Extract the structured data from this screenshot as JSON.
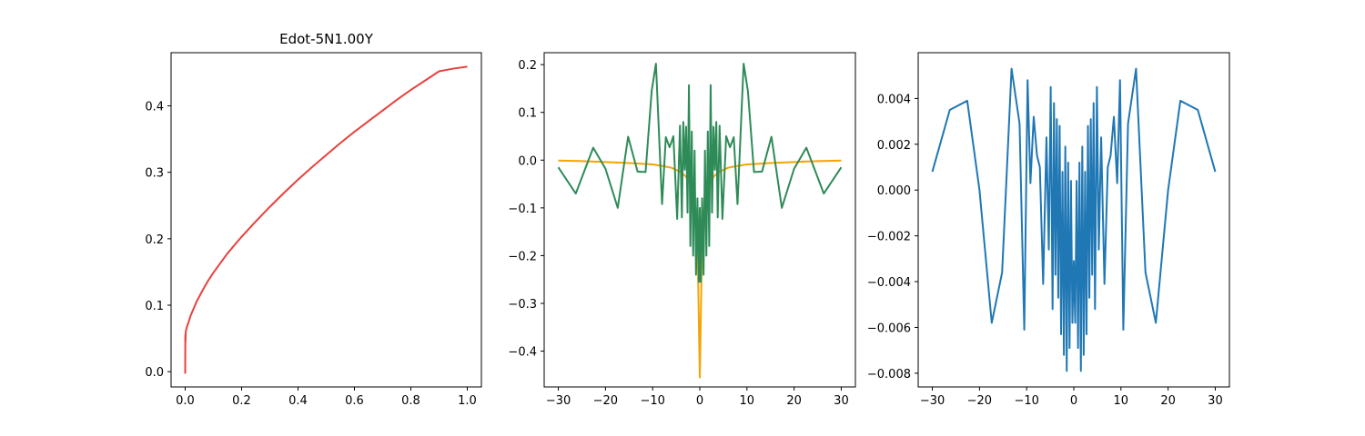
{
  "chart_data": [
    {
      "type": "line",
      "title": "Edot-5N1.00Y",
      "xlim": [
        -0.05,
        1.05
      ],
      "ylim": [
        -0.023,
        0.48
      ],
      "xticks": [
        0.0,
        0.2,
        0.4,
        0.6,
        0.8,
        1.0
      ],
      "xtick_labels": [
        "0.0",
        "0.2",
        "0.4",
        "0.6",
        "0.8",
        "1.0"
      ],
      "yticks": [
        0.0,
        0.1,
        0.2,
        0.3,
        0.4
      ],
      "ytick_labels": [
        "0.0",
        "0.1",
        "0.2",
        "0.3",
        "0.4"
      ],
      "grid": false,
      "series": [
        {
          "color": "#e8413c",
          "x": [
            0.0,
            0.0005,
            0.001,
            0.002,
            0.005,
            0.01,
            0.02,
            0.04,
            0.06,
            0.08,
            0.1,
            0.15,
            0.2,
            0.25,
            0.3,
            0.35,
            0.4,
            0.45,
            0.5,
            0.55,
            0.6,
            0.65,
            0.7,
            0.75,
            0.8,
            0.85,
            0.9,
            0.95,
            1.0
          ],
          "y": [
            -0.003,
            0.055,
            0.045,
            0.06,
            0.066,
            0.072,
            0.085,
            0.105,
            0.121,
            0.136,
            0.149,
            0.178,
            0.203,
            0.226,
            0.248,
            0.269,
            0.289,
            0.308,
            0.326,
            0.344,
            0.361,
            0.377,
            0.393,
            0.409,
            0.424,
            0.438,
            0.452,
            0.456,
            0.459
          ]
        }
      ]
    },
    {
      "type": "line",
      "xlim": [
        -33,
        33
      ],
      "ylim": [
        -0.475,
        0.225
      ],
      "xticks": [
        -30,
        -20,
        -10,
        0,
        10,
        20,
        30
      ],
      "xtick_labels": [
        "−30",
        "−20",
        "−10",
        "0",
        "10",
        "20",
        "30"
      ],
      "yticks": [
        -0.4,
        -0.3,
        -0.2,
        -0.1,
        0.0,
        0.1,
        0.2
      ],
      "ytick_labels": [
        "−0.4",
        "−0.3",
        "−0.2",
        "−0.1",
        "0.0",
        "0.1",
        "0.2"
      ],
      "grid": false,
      "series": [
        {
          "color": "#f5a300",
          "x": [
            -30,
            -25,
            -20,
            -15,
            -10,
            -8,
            -6,
            -4,
            -3,
            -2,
            -1,
            -0.5,
            0,
            0.5,
            1,
            2,
            3,
            4,
            6,
            8,
            10,
            15,
            20,
            25,
            30
          ],
          "y": [
            -0.001,
            -0.002,
            -0.004,
            -0.006,
            -0.009,
            -0.012,
            -0.016,
            -0.025,
            -0.034,
            -0.05,
            -0.09,
            -0.16,
            -0.455,
            -0.16,
            -0.09,
            -0.05,
            -0.034,
            -0.025,
            -0.016,
            -0.012,
            -0.009,
            -0.006,
            -0.004,
            -0.002,
            -0.001
          ]
        },
        {
          "color": "#2e8b57",
          "x": [
            -30,
            -26.3,
            -22.6,
            -20,
            -17.4,
            -15.2,
            -13.2,
            -11.5,
            -10.2,
            -9.3,
            -8.0,
            -7.2,
            -6.4,
            -5.6,
            -4.8,
            -4.2,
            -3.8,
            -3.5,
            -3.2,
            -2.9,
            -2.6,
            -2.3,
            -2.0,
            -1.7,
            -1.4,
            -1.1,
            -0.8,
            -0.5,
            -0.2,
            0,
            0.2,
            0.5,
            0.8,
            1.1,
            1.4,
            1.7,
            2.0,
            2.3,
            2.6,
            2.9,
            3.2,
            3.5,
            3.8,
            4.2,
            4.8,
            5.6,
            6.4,
            7.2,
            8.0,
            9.3,
            10.2,
            11.5,
            13.2,
            15.2,
            17.4,
            20,
            22.6,
            26.3,
            30
          ],
          "y": [
            -0.015,
            -0.07,
            0.026,
            -0.018,
            -0.1,
            0.049,
            -0.024,
            -0.025,
            0.145,
            0.202,
            -0.092,
            0.048,
            0.027,
            0.05,
            -0.123,
            0.072,
            -0.12,
            0.08,
            -0.02,
            0.07,
            -0.11,
            0.157,
            -0.18,
            0.06,
            -0.2,
            0.02,
            -0.24,
            -0.08,
            -0.255,
            -0.1,
            -0.255,
            -0.08,
            -0.24,
            0.02,
            -0.2,
            0.06,
            -0.18,
            0.157,
            -0.11,
            0.07,
            -0.02,
            0.08,
            -0.12,
            0.072,
            -0.123,
            0.05,
            0.027,
            0.048,
            -0.092,
            0.202,
            0.145,
            -0.025,
            -0.024,
            0.049,
            -0.1,
            -0.018,
            0.026,
            -0.07,
            -0.015
          ]
        }
      ]
    },
    {
      "type": "line",
      "xlim": [
        -33,
        33
      ],
      "ylim": [
        -0.0086,
        0.006
      ],
      "xticks": [
        -30,
        -20,
        -10,
        0,
        10,
        20,
        30
      ],
      "xtick_labels": [
        "−30",
        "−20",
        "−10",
        "0",
        "10",
        "20",
        "30"
      ],
      "yticks": [
        -0.008,
        -0.006,
        -0.004,
        -0.002,
        0.0,
        0.002,
        0.004
      ],
      "ytick_labels": [
        "−0.008",
        "−0.006",
        "−0.004",
        "−0.002",
        "0.000",
        "0.002",
        "0.004"
      ],
      "grid": false,
      "series": [
        {
          "color": "#1f77b4",
          "x": [
            -30,
            -26.3,
            -22.6,
            -20,
            -17.4,
            -15.2,
            -13.2,
            -11.5,
            -10.5,
            -9.8,
            -9.2,
            -8.5,
            -7.8,
            -7.2,
            -6.5,
            -5.8,
            -5.3,
            -4.9,
            -4.5,
            -4.2,
            -3.9,
            -3.6,
            -3.3,
            -3.0,
            -2.7,
            -2.4,
            -2.1,
            -1.8,
            -1.5,
            -1.2,
            -0.9,
            -0.6,
            -0.3,
            0,
            0.3,
            0.6,
            0.9,
            1.2,
            1.5,
            1.8,
            2.1,
            2.4,
            2.7,
            3.0,
            3.3,
            3.6,
            3.9,
            4.2,
            4.5,
            4.9,
            5.3,
            5.8,
            6.5,
            7.2,
            7.8,
            8.5,
            9.2,
            9.8,
            10.5,
            11.5,
            13.2,
            15.2,
            17.4,
            20,
            22.6,
            26.3,
            30
          ],
          "y": [
            0.0008,
            0.0035,
            0.0039,
            0.0,
            -0.0058,
            -0.0036,
            0.0053,
            0.0029,
            -0.0061,
            0.0048,
            0.0003,
            0.0032,
            0.0015,
            0.001,
            -0.0041,
            0.0023,
            -0.0026,
            0.0045,
            -0.0052,
            0.0038,
            -0.0037,
            0.0031,
            -0.0047,
            0.0028,
            -0.0063,
            0.0008,
            -0.0072,
            0.0019,
            -0.0079,
            0.0012,
            -0.0069,
            0.0004,
            -0.0058,
            -0.0031,
            -0.0058,
            0.0004,
            -0.0069,
            0.0012,
            -0.0079,
            0.0019,
            -0.0072,
            0.0008,
            -0.0063,
            0.0028,
            -0.0047,
            0.0031,
            -0.0037,
            0.0038,
            -0.0052,
            0.0045,
            -0.0026,
            0.0023,
            -0.0041,
            0.001,
            0.0015,
            0.0032,
            0.0003,
            0.0048,
            -0.0061,
            0.0029,
            0.0053,
            -0.0036,
            -0.0058,
            0.0,
            0.0039,
            0.0035,
            0.0008
          ]
        }
      ]
    }
  ]
}
